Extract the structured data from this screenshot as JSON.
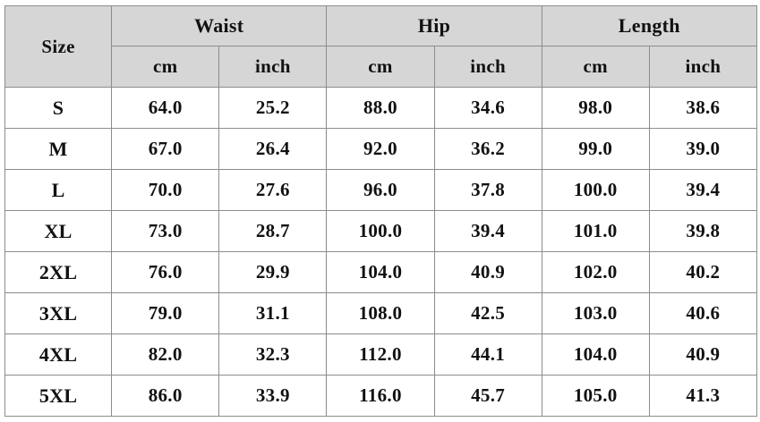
{
  "table": {
    "size_header": "Size",
    "groups": [
      {
        "label": "Waist",
        "units": [
          "cm",
          "inch"
        ]
      },
      {
        "label": "Hip",
        "units": [
          "cm",
          "inch"
        ]
      },
      {
        "label": "Length",
        "units": [
          "cm",
          "inch"
        ]
      }
    ],
    "rows": [
      {
        "size": "S",
        "values": [
          "64.0",
          "25.2",
          "88.0",
          "34.6",
          "98.0",
          "38.6"
        ]
      },
      {
        "size": "M",
        "values": [
          "67.0",
          "26.4",
          "92.0",
          "36.2",
          "99.0",
          "39.0"
        ]
      },
      {
        "size": "L",
        "values": [
          "70.0",
          "27.6",
          "96.0",
          "37.8",
          "100.0",
          "39.4"
        ]
      },
      {
        "size": "XL",
        "values": [
          "73.0",
          "28.7",
          "100.0",
          "39.4",
          "101.0",
          "39.8"
        ]
      },
      {
        "size": "2XL",
        "values": [
          "76.0",
          "29.9",
          "104.0",
          "40.9",
          "102.0",
          "40.2"
        ]
      },
      {
        "size": "3XL",
        "values": [
          "79.0",
          "31.1",
          "108.0",
          "42.5",
          "103.0",
          "40.6"
        ]
      },
      {
        "size": "4XL",
        "values": [
          "82.0",
          "32.3",
          "112.0",
          "44.1",
          "104.0",
          "40.9"
        ]
      },
      {
        "size": "5XL",
        "values": [
          "86.0",
          "33.9",
          "116.0",
          "45.7",
          "105.0",
          "41.3"
        ]
      }
    ]
  },
  "colors": {
    "header_background": "#d6d6d6",
    "border": "#8c8c8c",
    "text": "#111111"
  }
}
